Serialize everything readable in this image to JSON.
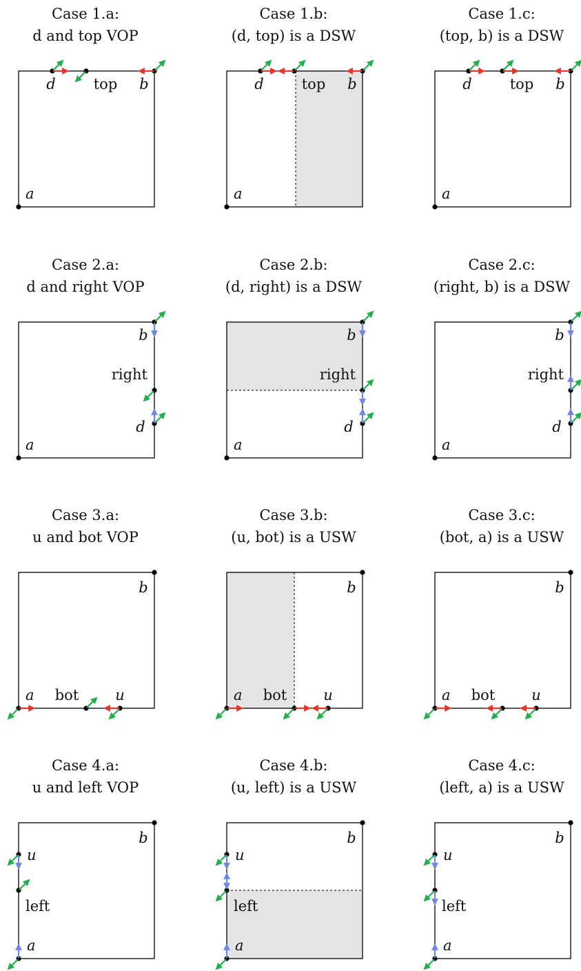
{
  "colors": {
    "green": "#22b04a",
    "red": "#e8352a",
    "blue": "#6f86e6",
    "shade": "#e4e4e4",
    "stroke": "#000000"
  },
  "panels": [
    {
      "id": "1a",
      "row": 0,
      "col": 0,
      "caption_line1": "Case 1.a:",
      "caption_line2": "d and top VOP",
      "shade": "none",
      "divider": "none",
      "points": [
        "d",
        "top",
        "b",
        "a"
      ],
      "labels": {
        "a": "a",
        "b": "b",
        "d": "d",
        "top": "top"
      }
    },
    {
      "id": "1b",
      "row": 0,
      "col": 1,
      "caption_line1": "Case 1.b:",
      "caption_line2": "(d, top) is a DSW",
      "shade": "right-half",
      "divider": "vertical",
      "points": [
        "d",
        "top",
        "b",
        "a"
      ],
      "labels": {
        "a": "a",
        "b": "b",
        "d": "d",
        "top": "top"
      }
    },
    {
      "id": "1c",
      "row": 0,
      "col": 2,
      "caption_line1": "Case 1.c:",
      "caption_line2": "(top, b) is a DSW",
      "shade": "none",
      "divider": "none",
      "points": [
        "d",
        "top",
        "b",
        "a"
      ],
      "labels": {
        "a": "a",
        "b": "b",
        "d": "d",
        "top": "top"
      }
    },
    {
      "id": "2a",
      "row": 1,
      "col": 0,
      "caption_line1": "Case 2.a:",
      "caption_line2": "d and right VOP",
      "shade": "none",
      "divider": "none",
      "points": [
        "b",
        "right",
        "d",
        "a"
      ],
      "labels": {
        "a": "a",
        "b": "b",
        "d": "d",
        "right": "right"
      }
    },
    {
      "id": "2b",
      "row": 1,
      "col": 1,
      "caption_line1": "Case 2.b:",
      "caption_line2": "(d, right) is a DSW",
      "shade": "top-half",
      "divider": "horizontal",
      "points": [
        "b",
        "right",
        "d",
        "a"
      ],
      "labels": {
        "a": "a",
        "b": "b",
        "d": "d",
        "right": "right"
      }
    },
    {
      "id": "2c",
      "row": 1,
      "col": 2,
      "caption_line1": "Case 2.c:",
      "caption_line2": "(right, b) is a DSW",
      "shade": "none",
      "divider": "none",
      "points": [
        "b",
        "right",
        "d",
        "a"
      ],
      "labels": {
        "a": "a",
        "b": "b",
        "d": "d",
        "right": "right"
      }
    },
    {
      "id": "3a",
      "row": 2,
      "col": 0,
      "caption_line1": "Case 3.a:",
      "caption_line2": "u and bot VOP",
      "shade": "none",
      "divider": "none",
      "points": [
        "a",
        "bot",
        "u",
        "b"
      ],
      "labels": {
        "a": "a",
        "b": "b",
        "u": "u",
        "bot": "bot"
      }
    },
    {
      "id": "3b",
      "row": 2,
      "col": 1,
      "caption_line1": "Case 3.b:",
      "caption_line2": "(u, bot) is a USW",
      "shade": "left-half",
      "divider": "vertical",
      "points": [
        "a",
        "bot",
        "u",
        "b"
      ],
      "labels": {
        "a": "a",
        "b": "b",
        "u": "u",
        "bot": "bot"
      }
    },
    {
      "id": "3c",
      "row": 2,
      "col": 2,
      "caption_line1": "Case 3.c:",
      "caption_line2": "(bot, a) is a USW",
      "shade": "none",
      "divider": "none",
      "points": [
        "a",
        "bot",
        "u",
        "b"
      ],
      "labels": {
        "a": "a",
        "b": "b",
        "u": "u",
        "bot": "bot"
      }
    },
    {
      "id": "4a",
      "row": 3,
      "col": 0,
      "caption_line1": "Case 4.a:",
      "caption_line2": "u and left VOP",
      "shade": "none",
      "divider": "none",
      "points": [
        "u",
        "left",
        "a",
        "b"
      ],
      "labels": {
        "a": "a",
        "b": "b",
        "u": "u",
        "left": "left"
      }
    },
    {
      "id": "4b",
      "row": 3,
      "col": 1,
      "caption_line1": "Case 4.b:",
      "caption_line2": "(u, left) is a USW",
      "shade": "bottom-half",
      "divider": "horizontal",
      "points": [
        "u",
        "left",
        "a",
        "b"
      ],
      "labels": {
        "a": "a",
        "b": "b",
        "u": "u",
        "left": "left"
      }
    },
    {
      "id": "4c",
      "row": 3,
      "col": 2,
      "caption_line1": "Case 4.c:",
      "caption_line2": "(left, a) is a USW",
      "shade": "none",
      "divider": "none",
      "points": [
        "u",
        "left",
        "a",
        "b"
      ],
      "labels": {
        "a": "a",
        "b": "b",
        "u": "u",
        "left": "left"
      }
    }
  ]
}
